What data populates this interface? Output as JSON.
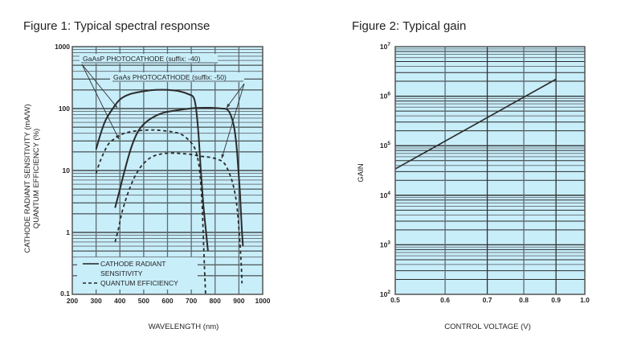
{
  "colors": {
    "plot_bg": "#c8eefa",
    "grid_major": "#2b2b2b",
    "grid_minor": "#707a80",
    "curve": "#2b2b2b"
  },
  "chart_data": [
    {
      "type": "line",
      "title": "Figure 1: Typical spectral response",
      "xlabel": "WAVELENGTH (nm)",
      "ylabel_line1": "CATHODE RADIANT SENSITIVITY (mA/W)",
      "ylabel_line2": "QUANTUM EFFICIENCY (%)",
      "xscale": "linear",
      "yscale": "log",
      "xlim": [
        200,
        1000
      ],
      "ylim": [
        0.1,
        1000
      ],
      "xticks": [
        "200",
        "300",
        "400",
        "500",
        "600",
        "700",
        "800",
        "900",
        "1000"
      ],
      "yticks": [
        "0.1",
        "1",
        "10",
        "100",
        "1000"
      ],
      "grid": true,
      "annotations": [
        {
          "text": "GaAsP PHOTOCATHODE (suffix: -40)"
        },
        {
          "text": "GaAs PHOTOCATHODE (suffix: -50)"
        }
      ],
      "legend": {
        "placement": "bottom-left",
        "entries": [
          {
            "line1": "CATHODE RADIANT",
            "line2": "SENSITIVITY",
            "style": "solid"
          },
          {
            "line1": "QUANTUM EFFICIENCY",
            "style": "dashed"
          }
        ]
      },
      "series": [
        {
          "name": "GaAsP cathode radiant sensitivity",
          "style": "solid",
          "x": [
            300,
            320,
            340,
            370,
            400,
            440,
            500,
            550,
            600,
            650,
            690,
            710,
            720,
            730,
            740,
            750,
            760,
            770
          ],
          "y": [
            22,
            40,
            65,
            100,
            140,
            170,
            190,
            200,
            200,
            190,
            170,
            150,
            100,
            40,
            10,
            3,
            1.2,
            0.5
          ]
        },
        {
          "name": "GaAsP quantum efficiency",
          "style": "dashed",
          "x": [
            300,
            320,
            350,
            380,
            420,
            480,
            550,
            620,
            660,
            700,
            720,
            735,
            745,
            750,
            755,
            760
          ],
          "y": [
            9,
            15,
            26,
            33,
            40,
            44,
            45,
            42,
            38,
            28,
            20,
            10,
            3,
            1,
            0.3,
            0.1
          ]
        },
        {
          "name": "GaAs cathode radiant sensitivity",
          "style": "solid",
          "x": [
            380,
            400,
            420,
            450,
            480,
            520,
            580,
            650,
            720,
            780,
            830,
            850,
            865,
            880,
            890,
            898,
            905,
            912,
            917
          ],
          "y": [
            2.5,
            5,
            10,
            25,
            45,
            65,
            85,
            95,
            102,
            103,
            100,
            97,
            80,
            50,
            25,
            10,
            4,
            1.2,
            0.6
          ]
        },
        {
          "name": "GaAs quantum efficiency",
          "style": "dashed",
          "x": [
            380,
            395,
            410,
            440,
            470,
            500,
            540,
            600,
            680,
            740,
            790,
            830,
            850,
            870,
            885,
            895,
            903,
            910,
            913
          ],
          "y": [
            0.7,
            1.2,
            2.2,
            5,
            9,
            13,
            17,
            19,
            18.5,
            17,
            16,
            14,
            11,
            7,
            4,
            2,
            0.8,
            0.3,
            0.15
          ]
        }
      ]
    },
    {
      "type": "line",
      "title": "Figure 2: Typical gain",
      "xlabel": "CONTROL VOLTAGE (V)",
      "ylabel": "GAIN",
      "xscale": "log",
      "yscale": "log",
      "xlim": [
        0.5,
        1.0
      ],
      "ylim": [
        100,
        10000000
      ],
      "xticks": [
        "0.5",
        "0.6",
        "0.7",
        "0.8",
        "0.9",
        "1.0"
      ],
      "xtick_values": [
        0.5,
        0.6,
        0.7,
        0.8,
        0.9,
        1.0
      ],
      "yticks": [
        {
          "base": "10",
          "exp": "2"
        },
        {
          "base": "10",
          "exp": "3"
        },
        {
          "base": "10",
          "exp": "4"
        },
        {
          "base": "10",
          "exp": "5"
        },
        {
          "base": "10",
          "exp": "6"
        },
        {
          "base": "10",
          "exp": "7"
        }
      ],
      "grid": true,
      "series": [
        {
          "name": "Gain",
          "style": "solid",
          "x": [
            0.5,
            0.9
          ],
          "y": [
            34000,
            2200000
          ]
        }
      ]
    }
  ]
}
